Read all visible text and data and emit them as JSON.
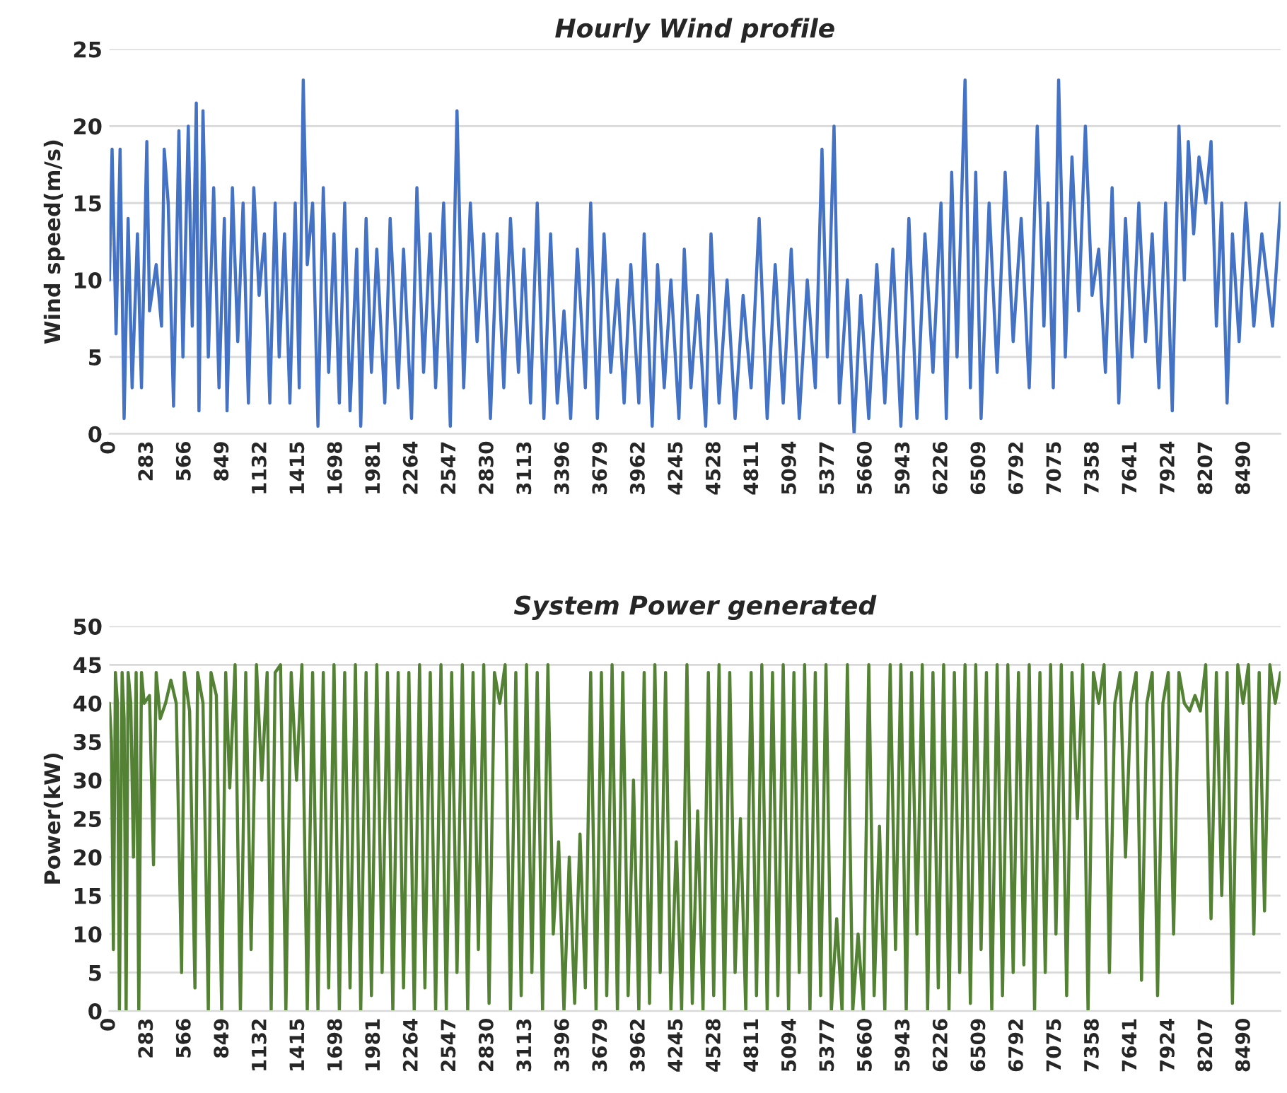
{
  "chart_data": [
    {
      "type": "line",
      "title": "Hourly Wind profile",
      "ylabel": "Wind speed(m/s)",
      "xlim": [
        0,
        8760
      ],
      "xticks": [
        0,
        283,
        566,
        849,
        1132,
        1415,
        1698,
        1981,
        2264,
        2547,
        2830,
        3113,
        3396,
        3679,
        3962,
        4245,
        4528,
        4811,
        5094,
        5377,
        5660,
        5943,
        6226,
        6509,
        6792,
        7075,
        7358,
        7641,
        7924,
        8207,
        8490
      ],
      "ylim": [
        0,
        25
      ],
      "yticks": [
        0,
        5,
        10,
        15,
        20,
        25
      ],
      "grid": "y",
      "legend": false,
      "series": [
        {
          "color": "#4472c4",
          "x": [
            0,
            20,
            50,
            80,
            110,
            140,
            170,
            210,
            240,
            280,
            300,
            350,
            390,
            410,
            440,
            480,
            520,
            550,
            590,
            620,
            650,
            670,
            700,
            740,
            780,
            820,
            860,
            880,
            920,
            960,
            1000,
            1040,
            1080,
            1120,
            1160,
            1200,
            1240,
            1270,
            1310,
            1350,
            1390,
            1420,
            1450,
            1480,
            1520,
            1560,
            1600,
            1640,
            1680,
            1720,
            1760,
            1800,
            1850,
            1880,
            1920,
            1960,
            2000,
            2060,
            2100,
            2160,
            2200,
            2260,
            2300,
            2350,
            2400,
            2440,
            2500,
            2550,
            2600,
            2650,
            2700,
            2750,
            2800,
            2850,
            2900,
            2950,
            3000,
            3060,
            3100,
            3150,
            3200,
            3250,
            3300,
            3350,
            3400,
            3450,
            3500,
            3560,
            3600,
            3650,
            3700,
            3750,
            3800,
            3850,
            3900,
            3960,
            4000,
            4060,
            4100,
            4150,
            4200,
            4260,
            4300,
            4350,
            4400,
            4460,
            4500,
            4560,
            4620,
            4680,
            4740,
            4800,
            4860,
            4920,
            4980,
            5040,
            5100,
            5160,
            5220,
            5280,
            5330,
            5370,
            5420,
            5460,
            5520,
            5570,
            5620,
            5680,
            5740,
            5800,
            5860,
            5920,
            5980,
            6040,
            6100,
            6160,
            6220,
            6260,
            6300,
            6340,
            6400,
            6440,
            6480,
            6520,
            6580,
            6640,
            6700,
            6760,
            6820,
            6880,
            6940,
            6990,
            7020,
            7060,
            7100,
            7150,
            7200,
            7250,
            7300,
            7350,
            7400,
            7450,
            7500,
            7550,
            7600,
            7650,
            7700,
            7750,
            7800,
            7850,
            7900,
            7950,
            8000,
            8040,
            8070,
            8110,
            8150,
            8200,
            8240,
            8280,
            8320,
            8360,
            8400,
            8450,
            8500,
            8560,
            8620,
            8700,
            8760
          ],
          "values": [
            10,
            18.5,
            6.5,
            18.5,
            1,
            14,
            3,
            13,
            3,
            19,
            8,
            11,
            7,
            18.5,
            15,
            1.8,
            19.7,
            5,
            20,
            7,
            21.5,
            1.5,
            21,
            5,
            16,
            3,
            14,
            1.5,
            16,
            6,
            15,
            2,
            16,
            9,
            13,
            2,
            15,
            5,
            13,
            2,
            15,
            3,
            23,
            11,
            15,
            0.5,
            16,
            4,
            13,
            2,
            15,
            1.5,
            12,
            0.5,
            14,
            4,
            12,
            2,
            14,
            3,
            12,
            1,
            16,
            4,
            13,
            3,
            15,
            0.5,
            21,
            3,
            15,
            6,
            13,
            1,
            13,
            3,
            14,
            4,
            12,
            2,
            15,
            1,
            13,
            2,
            8,
            1,
            12,
            3,
            15,
            1,
            13,
            4,
            10,
            2,
            11,
            2,
            13,
            0.5,
            11,
            3,
            10,
            1,
            12,
            3,
            9,
            0.5,
            13,
            2,
            10,
            1,
            9,
            3,
            14,
            1,
            11,
            2,
            12,
            1,
            10,
            3,
            18.5,
            5,
            20,
            2,
            10,
            0,
            9,
            1,
            11,
            2,
            12,
            0.5,
            14,
            1,
            13,
            4,
            15,
            1,
            17,
            5,
            23,
            3,
            17,
            1,
            15,
            4,
            17,
            6,
            14,
            3,
            20,
            7,
            15,
            3,
            23,
            5,
            18,
            8,
            20,
            9,
            12,
            4,
            16,
            2,
            14,
            5,
            15,
            6,
            13,
            3,
            15,
            1.5,
            20,
            10,
            19,
            13,
            18,
            15,
            19,
            7,
            15,
            2,
            13,
            6,
            15,
            7,
            13,
            7,
            15
          ]
        }
      ]
    },
    {
      "type": "line",
      "title": "System Power generated",
      "ylabel": "Power(kW)",
      "xlim": [
        0,
        8760
      ],
      "xticks": [
        0,
        283,
        566,
        849,
        1132,
        1415,
        1698,
        1981,
        2264,
        2547,
        2830,
        3113,
        3396,
        3679,
        3962,
        4245,
        4528,
        4811,
        5094,
        5377,
        5660,
        5943,
        6226,
        6509,
        6792,
        7075,
        7358,
        7641,
        7924,
        8207,
        8490
      ],
      "ylim": [
        0,
        50
      ],
      "yticks": [
        0,
        5,
        10,
        15,
        20,
        25,
        30,
        35,
        40,
        45,
        50
      ],
      "grid": "y",
      "legend": false,
      "series": [
        {
          "color": "#548235",
          "x": [
            0,
            15,
            30,
            45,
            60,
            75,
            95,
            110,
            125,
            140,
            160,
            180,
            200,
            220,
            240,
            260,
            300,
            330,
            350,
            380,
            420,
            460,
            500,
            540,
            560,
            600,
            640,
            660,
            700,
            740,
            760,
            800,
            840,
            870,
            900,
            940,
            980,
            1020,
            1060,
            1100,
            1140,
            1180,
            1210,
            1240,
            1280,
            1320,
            1360,
            1400,
            1440,
            1480,
            1520,
            1560,
            1600,
            1640,
            1680,
            1720,
            1760,
            1800,
            1840,
            1880,
            1920,
            1960,
            2000,
            2040,
            2080,
            2120,
            2160,
            2200,
            2240,
            2280,
            2320,
            2360,
            2400,
            2440,
            2480,
            2520,
            2560,
            2600,
            2640,
            2680,
            2720,
            2760,
            2800,
            2840,
            2880,
            2920,
            2960,
            3000,
            3040,
            3080,
            3120,
            3160,
            3200,
            3240,
            3280,
            3320,
            3360,
            3400,
            3440,
            3480,
            3520,
            3560,
            3600,
            3640,
            3680,
            3720,
            3760,
            3800,
            3840,
            3880,
            3920,
            3960,
            4000,
            4040,
            4080,
            4120,
            4160,
            4200,
            4240,
            4280,
            4320,
            4360,
            4400,
            4440,
            4480,
            4520,
            4560,
            4600,
            4640,
            4680,
            4720,
            4760,
            4800,
            4840,
            4880,
            4920,
            4960,
            5000,
            5040,
            5080,
            5120,
            5160,
            5200,
            5240,
            5280,
            5320,
            5360,
            5400,
            5440,
            5480,
            5520,
            5560,
            5600,
            5640,
            5680,
            5720,
            5760,
            5800,
            5840,
            5880,
            5920,
            5960,
            6000,
            6040,
            6080,
            6120,
            6160,
            6200,
            6240,
            6280,
            6320,
            6360,
            6400,
            6440,
            6480,
            6520,
            6560,
            6600,
            6640,
            6680,
            6720,
            6760,
            6800,
            6840,
            6880,
            6920,
            6960,
            7000,
            7040,
            7080,
            7120,
            7160,
            7200,
            7240,
            7280,
            7320,
            7360,
            7400,
            7440,
            7480,
            7520,
            7560,
            7600,
            7640,
            7680,
            7720,
            7760,
            7800,
            7840,
            7880,
            7920,
            7960,
            8000,
            8040,
            8080,
            8120,
            8160,
            8200,
            8240,
            8280,
            8320,
            8360,
            8400,
            8440,
            8480,
            8520,
            8560,
            8600,
            8640,
            8680,
            8720,
            8760
          ],
          "values": [
            40,
            35,
            8,
            44,
            40,
            0,
            44,
            38,
            0,
            44,
            40,
            20,
            44,
            0,
            44,
            40,
            41,
            19,
            44,
            38,
            40,
            43,
            40,
            5,
            44,
            39,
            3,
            44,
            40,
            0,
            44,
            41,
            0,
            44,
            29,
            45,
            0,
            44,
            8,
            45,
            30,
            44,
            0,
            44,
            45,
            0,
            44,
            30,
            45,
            0,
            44,
            0,
            44,
            3,
            45,
            0,
            44,
            3,
            45,
            0,
            44,
            2,
            45,
            5,
            44,
            0,
            44,
            3,
            44,
            0,
            45,
            3,
            44,
            0,
            45,
            0,
            44,
            5,
            45,
            0,
            44,
            8,
            45,
            1,
            44,
            40,
            45,
            0,
            44,
            2,
            45,
            5,
            44,
            0,
            45,
            10,
            22,
            0,
            20,
            1,
            23,
            3,
            44,
            0,
            44,
            2,
            45,
            0,
            44,
            2,
            30,
            0,
            44,
            1,
            45,
            5,
            44,
            0,
            22,
            0,
            45,
            1,
            26,
            0,
            44,
            2,
            45,
            0,
            44,
            5,
            25,
            0,
            44,
            2,
            45,
            0,
            44,
            2,
            45,
            0,
            44,
            5,
            45,
            0,
            44,
            2,
            45,
            0,
            12,
            0,
            45,
            0,
            10,
            0,
            45,
            2,
            24,
            0,
            45,
            8,
            45,
            0,
            44,
            10,
            45,
            0,
            44,
            3,
            45,
            0,
            44,
            5,
            45,
            1,
            45,
            8,
            44,
            0,
            45,
            2,
            45,
            5,
            44,
            6,
            45,
            0,
            44,
            5,
            45,
            10,
            45,
            2,
            44,
            25,
            45,
            0,
            44,
            40,
            45,
            5,
            40,
            44,
            20,
            40,
            44,
            4,
            40,
            44,
            2,
            40,
            44,
            10,
            44,
            40,
            39,
            41,
            39,
            45,
            12,
            44,
            15,
            44,
            1,
            45,
            40,
            45,
            10,
            44,
            13,
            45,
            40,
            44
          ]
        }
      ]
    }
  ]
}
